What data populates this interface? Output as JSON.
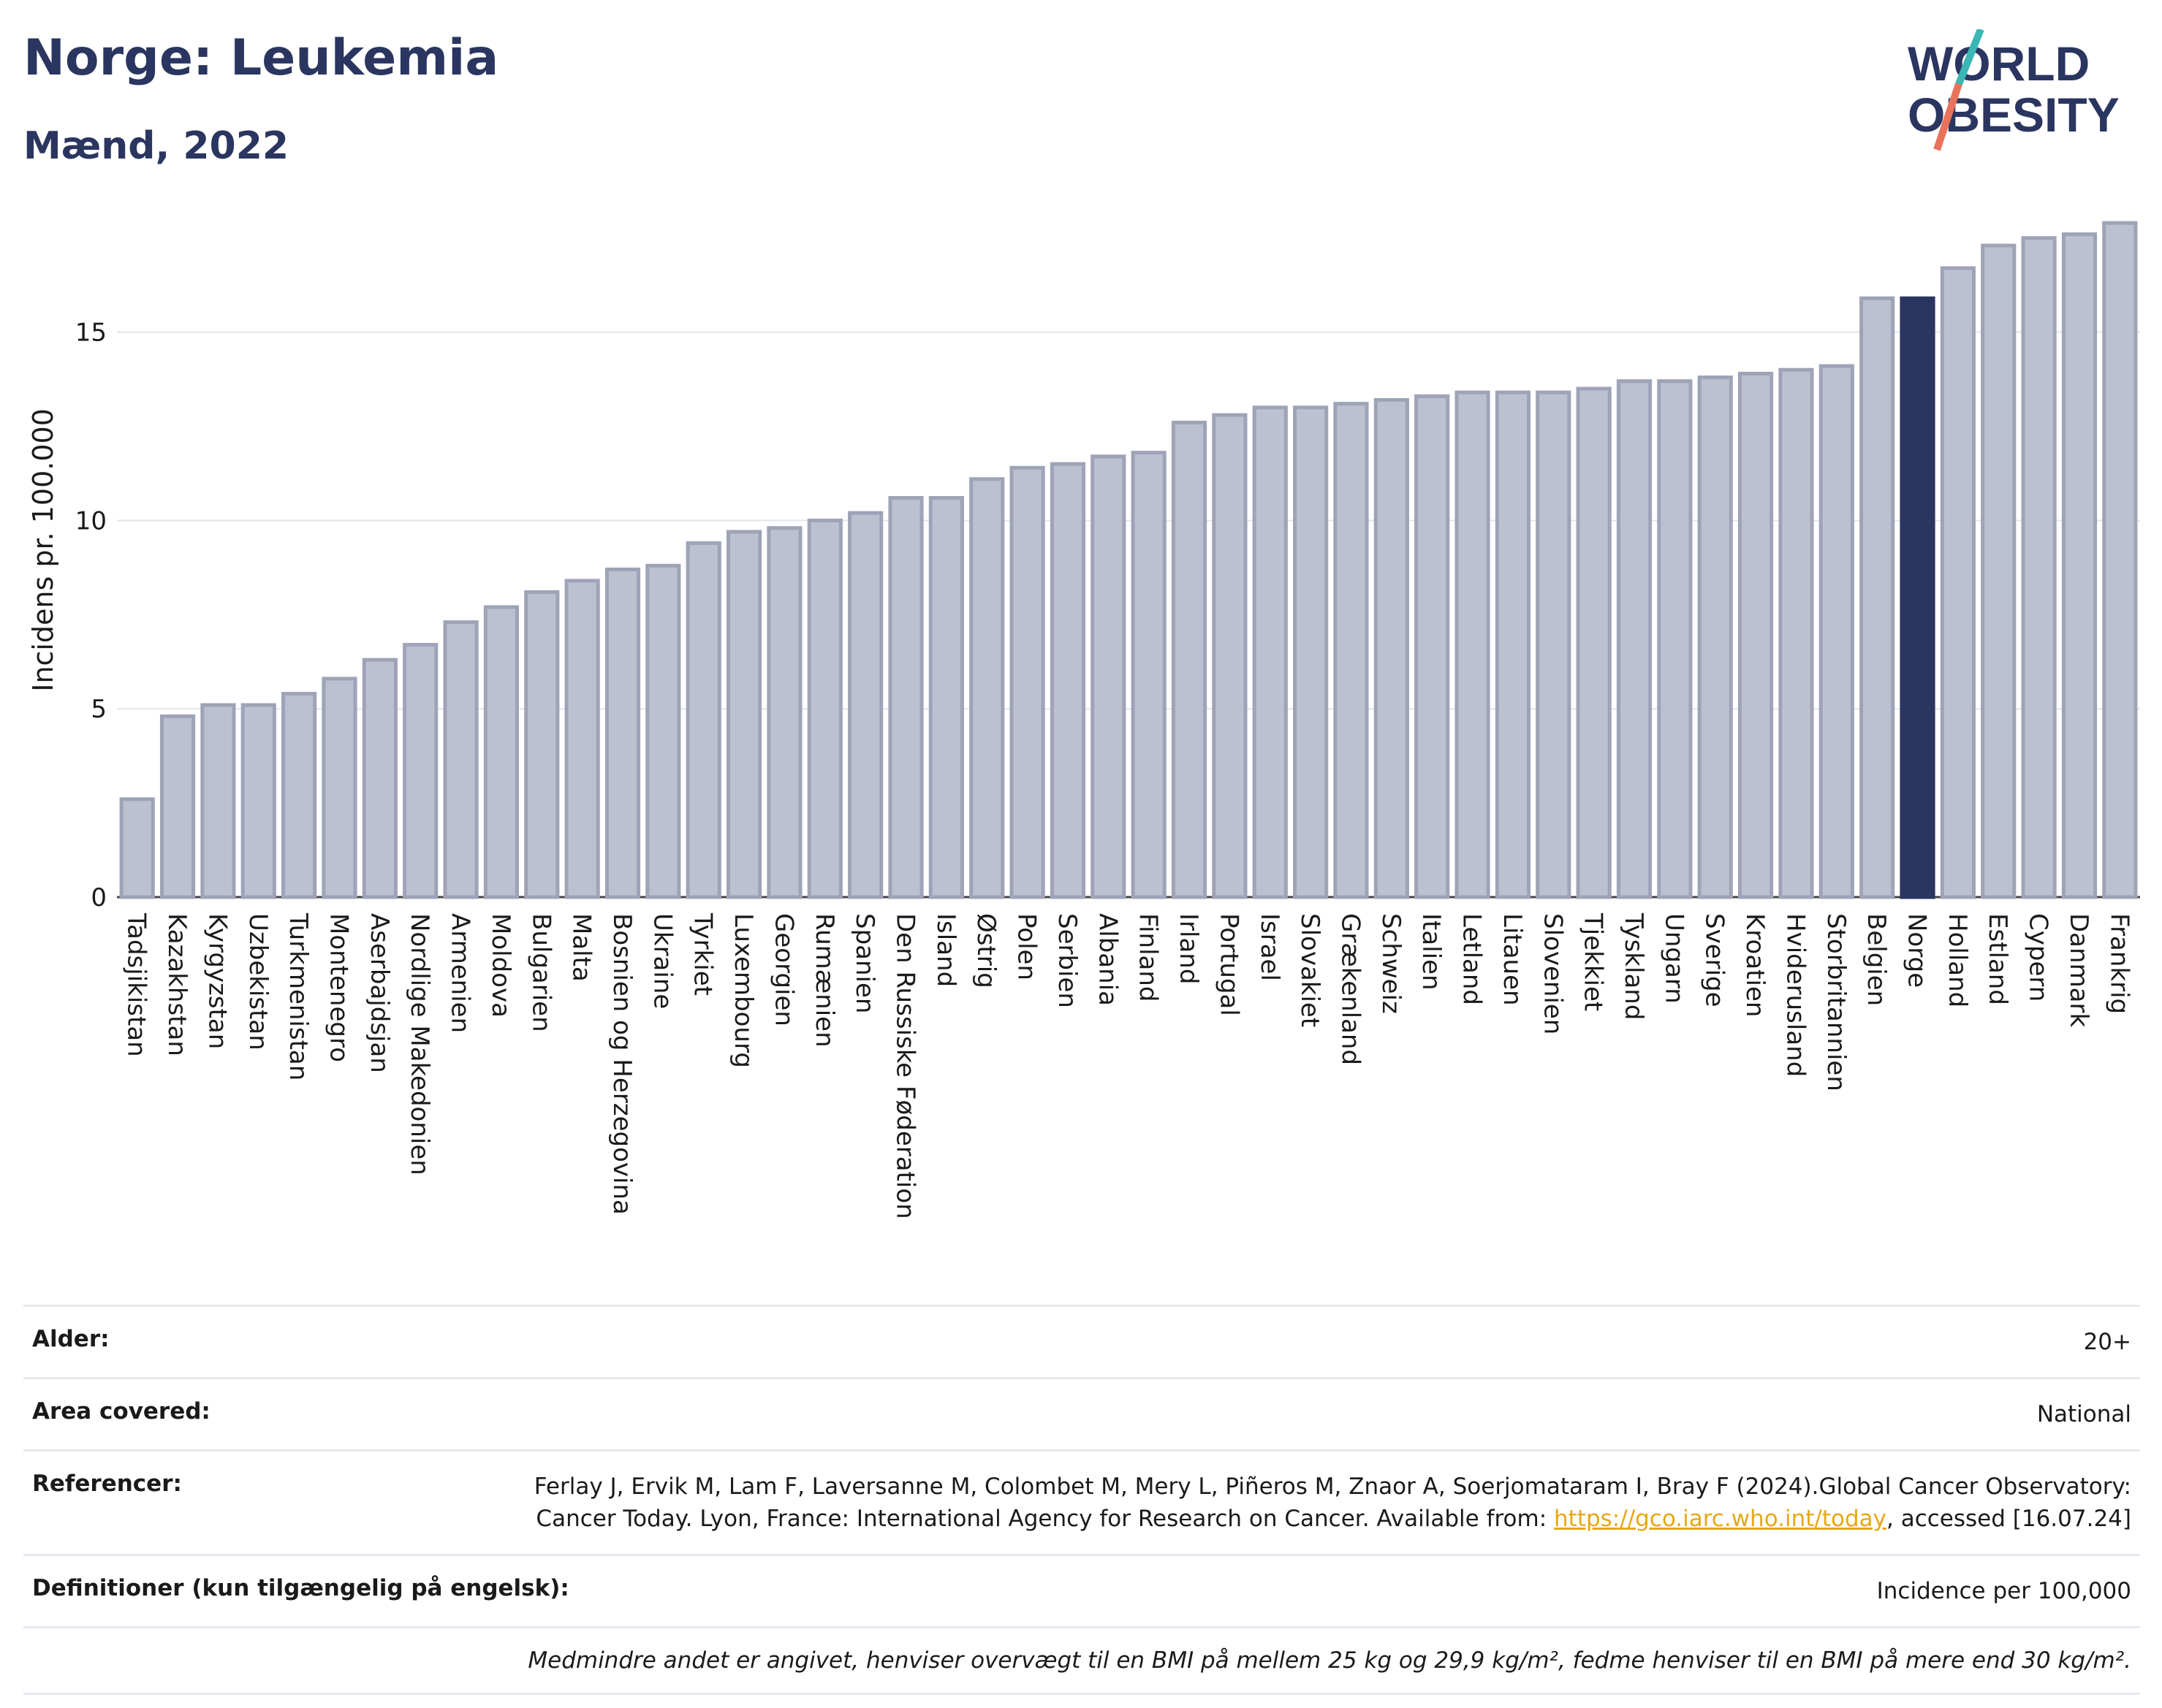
{
  "header": {
    "title": "Norge: Leukemia",
    "subtitle": "Mænd, 2022",
    "logo_line1": "WORLD",
    "logo_line2": "OBESITY"
  },
  "colors": {
    "bar": "#bcc0d0",
    "bar_stroke": "#9ea3b8",
    "highlight": "#2a3560",
    "title": "#2a3560",
    "logo_slash_teal": "#3ab7b4",
    "logo_slash_red": "#e8735a",
    "link": "#e6a817"
  },
  "chart_data": {
    "type": "bar",
    "title": "Norge: Leukemia",
    "subtitle": "Mænd, 2022",
    "xlabel": "",
    "ylabel": "Incidens pr. 100.000",
    "ylim": [
      0,
      18
    ],
    "yticks": [
      0,
      5,
      10,
      15
    ],
    "grid": true,
    "highlight": "Norge",
    "categories": [
      "Tadsjikistan",
      "Kazakhstan",
      "Kyrgyzstan",
      "Uzbekistan",
      "Turkmenistan",
      "Montenegro",
      "Aserbajdsjan",
      "Nordlige Makedonien",
      "Armenien",
      "Moldova",
      "Bulgarien",
      "Malta",
      "Bosnien og Herzegovina",
      "Ukraine",
      "Tyrkiet",
      "Luxembourg",
      "Georgien",
      "Rumænien",
      "Spanien",
      "Den Russiske Føderation",
      "Island",
      "Østrig",
      "Polen",
      "Serbien",
      "Albania",
      "Finland",
      "Irland",
      "Portugal",
      "Israel",
      "Slovakiet",
      "Grækenland",
      "Schweiz",
      "Italien",
      "Letland",
      "Litauen",
      "Slovenien",
      "Tjekkiet",
      "Tyskland",
      "Ungarn",
      "Sverige",
      "Kroatien",
      "Hviderusland",
      "Storbritannien",
      "Belgien",
      "Norge",
      "Holland",
      "Estland",
      "Cypern",
      "Danmark",
      "Frankrig"
    ],
    "values": [
      2.6,
      4.8,
      5.1,
      5.1,
      5.4,
      5.8,
      6.3,
      6.7,
      7.3,
      7.7,
      8.1,
      8.4,
      8.7,
      8.8,
      9.4,
      9.7,
      9.8,
      10.0,
      10.2,
      10.6,
      10.6,
      11.1,
      11.4,
      11.5,
      11.7,
      11.8,
      12.6,
      12.8,
      13.0,
      13.0,
      13.1,
      13.2,
      13.3,
      13.4,
      13.4,
      13.4,
      13.5,
      13.7,
      13.7,
      13.8,
      13.9,
      14.0,
      14.1,
      15.9,
      15.9,
      16.7,
      17.3,
      17.5,
      17.6,
      17.9
    ]
  },
  "meta": {
    "age_label": "Alder:",
    "age_value": "20+",
    "area_label": "Area covered:",
    "area_value": "National",
    "ref_label": "Referencer:",
    "ref_text_1": "Ferlay J, Ervik M, Lam F, Laversanne M, Colombet M, Mery L, Piñeros M, Znaor A, Soerjomataram I, Bray F (2024).Global Cancer Observatory: Cancer Today. Lyon, France: International Agency for Research on Cancer. Available from: ",
    "ref_link": "https://gco.iarc.who.int/today",
    "ref_text_2": ", accessed [16.07.24]",
    "def_label": "Definitioner (kun tilgængelig på engelsk):",
    "def_value": "Incidence per 100,000",
    "note": "Medmindre andet er angivet, henviser overvægt til en BMI på mellem 25 kg og 29,9 kg/m², fedme henviser til en BMI på mere end 30 kg/m²."
  }
}
